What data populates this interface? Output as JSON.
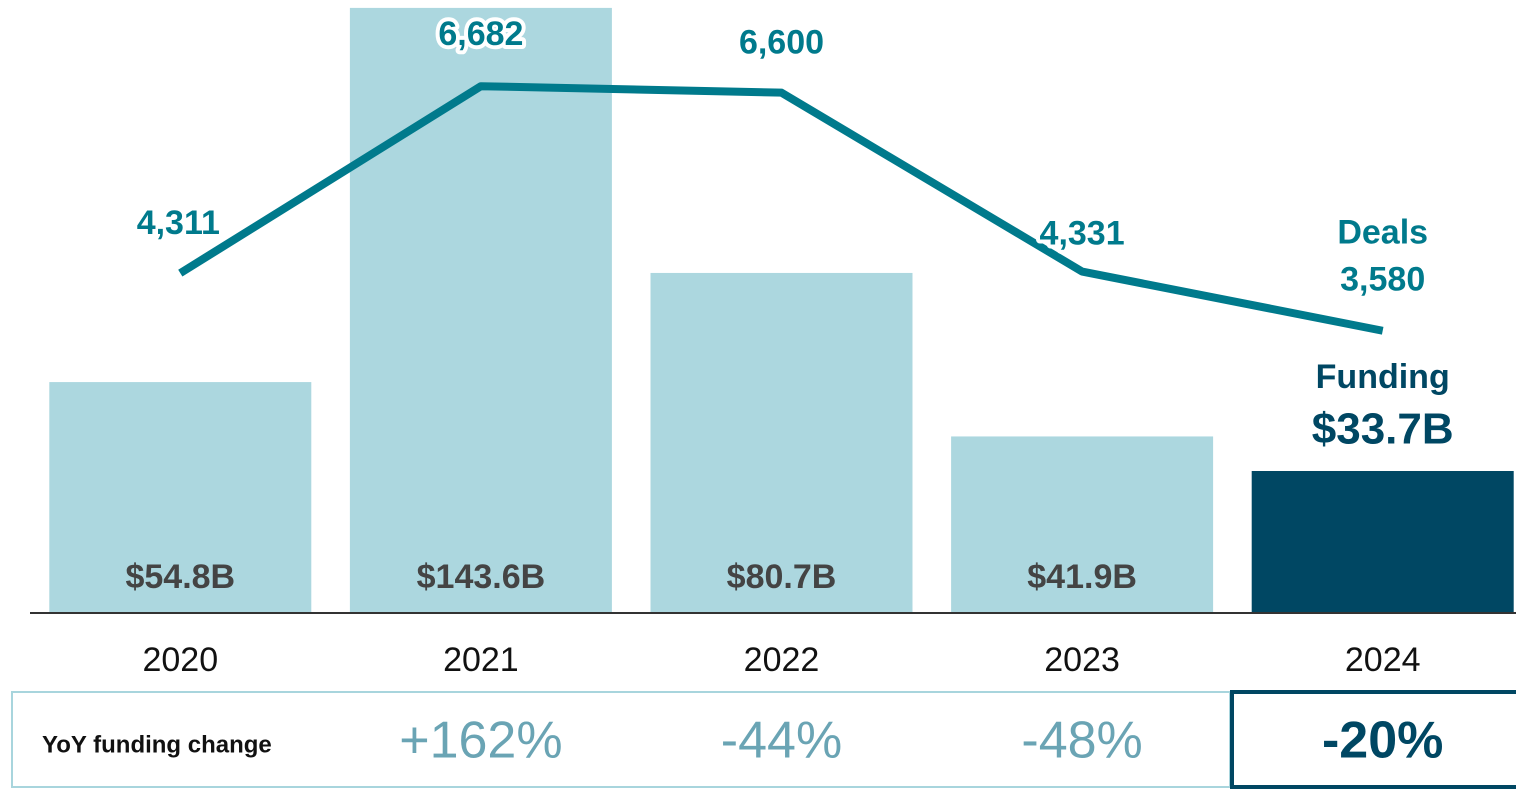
{
  "chart_data": {
    "type": "bar_line",
    "categories": [
      "2020",
      "2021",
      "2022",
      "2023",
      "2024"
    ],
    "series": [
      {
        "name": "Funding",
        "type": "bar",
        "colors": [
          "#acd7df",
          "#acd7df",
          "#acd7df",
          "#acd7df",
          "#004763"
        ],
        "values": [
          54.8,
          143.6,
          80.7,
          41.9,
          33.7
        ],
        "value_labels": [
          "$54.8B",
          "$143.6B",
          "$80.7B",
          "$41.9B",
          "$33.7B"
        ]
      },
      {
        "name": "Deals",
        "type": "line",
        "axis": "y2",
        "color": "#007a8c",
        "values": [
          4311,
          6682,
          6600,
          4331,
          3580
        ],
        "value_labels": [
          "4,311",
          "6,682",
          "6,600",
          "4,331",
          "3,580"
        ]
      }
    ],
    "ylim": [
      0,
      145
    ],
    "y2lim": [
      0,
      7750
    ],
    "yoy": {
      "label": "YoY funding change",
      "values": [
        null,
        162,
        -44,
        -48,
        -20
      ],
      "value_labels": [
        null,
        "+162%",
        "-44%",
        "-48%",
        "-20%"
      ]
    }
  }
}
